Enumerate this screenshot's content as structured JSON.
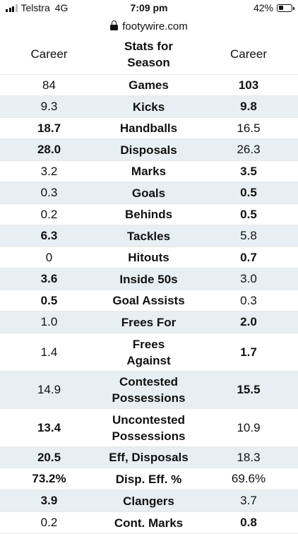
{
  "status": {
    "carrier": "Telstra",
    "network": "4G",
    "time": "7:09 pm",
    "battery": "42%",
    "battery_level": 0.42
  },
  "url": "footywire.com",
  "header": {
    "left": "Career",
    "center": "Stats for Season",
    "right": "Career"
  },
  "rows": [
    {
      "label": "Games",
      "left": "84",
      "right": "103",
      "bold": "right"
    },
    {
      "label": "Kicks",
      "left": "9.3",
      "right": "9.8",
      "bold": "right"
    },
    {
      "label": "Handballs",
      "left": "18.7",
      "right": "16.5",
      "bold": "left"
    },
    {
      "label": "Disposals",
      "left": "28.0",
      "right": "26.3",
      "bold": "left"
    },
    {
      "label": "Marks",
      "left": "3.2",
      "right": "3.5",
      "bold": "right"
    },
    {
      "label": "Goals",
      "left": "0.3",
      "right": "0.5",
      "bold": "right"
    },
    {
      "label": "Behinds",
      "left": "0.2",
      "right": "0.5",
      "bold": "right"
    },
    {
      "label": "Tackles",
      "left": "6.3",
      "right": "5.8",
      "bold": "left"
    },
    {
      "label": "Hitouts",
      "left": "0",
      "right": "0.7",
      "bold": "right"
    },
    {
      "label": "Inside 50s",
      "left": "3.6",
      "right": "3.0",
      "bold": "left"
    },
    {
      "label": "Goal Assists",
      "left": "0.5",
      "right": "0.3",
      "bold": "left"
    },
    {
      "label": "Frees For",
      "left": "1.0",
      "right": "2.0",
      "bold": "right"
    },
    {
      "label": "Frees Against",
      "left": "1.4",
      "right": "1.7",
      "bold": "right"
    },
    {
      "label": "Contested Possessions",
      "left": "14.9",
      "right": "15.5",
      "bold": "right"
    },
    {
      "label": "Uncontested Possessions",
      "left": "13.4",
      "right": "10.9",
      "bold": "left"
    },
    {
      "label": "Eff, Disposals",
      "left": "20.5",
      "right": "18.3",
      "bold": "left"
    },
    {
      "label": "Disp. Eff. %",
      "left": "73.2%",
      "right": "69.6%",
      "bold": "left"
    },
    {
      "label": "Clangers",
      "left": "3.9",
      "right": "3.7",
      "bold": "left"
    },
    {
      "label": "Cont. Marks",
      "left": "0.2",
      "right": "0.8",
      "bold": "right"
    }
  ]
}
